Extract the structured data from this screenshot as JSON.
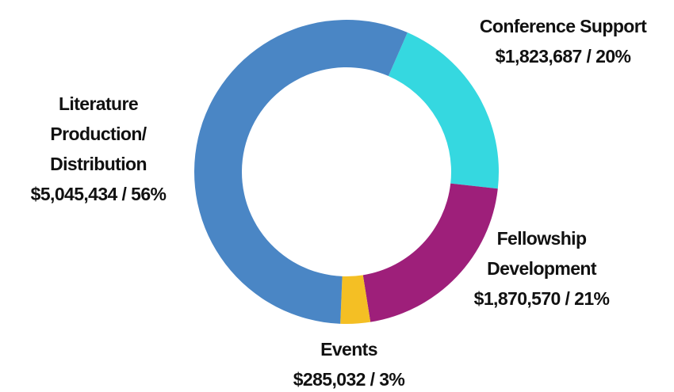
{
  "chart_data": {
    "type": "donut",
    "categories": [
      "Conference Support",
      "Fellowship Development",
      "Events",
      "Literature Production/ Distribution"
    ],
    "values": [
      1823687,
      1870570,
      285032,
      5045434
    ],
    "value_labels": [
      "$1,823,687 / 20%",
      "$1,870,570 / 21%",
      "$285,032 / 3%",
      "$5,045,434 / 56%"
    ],
    "colors": [
      "#35d8e0",
      "#9e1f7a",
      "#f4bf24",
      "#4a86c5"
    ]
  }
}
